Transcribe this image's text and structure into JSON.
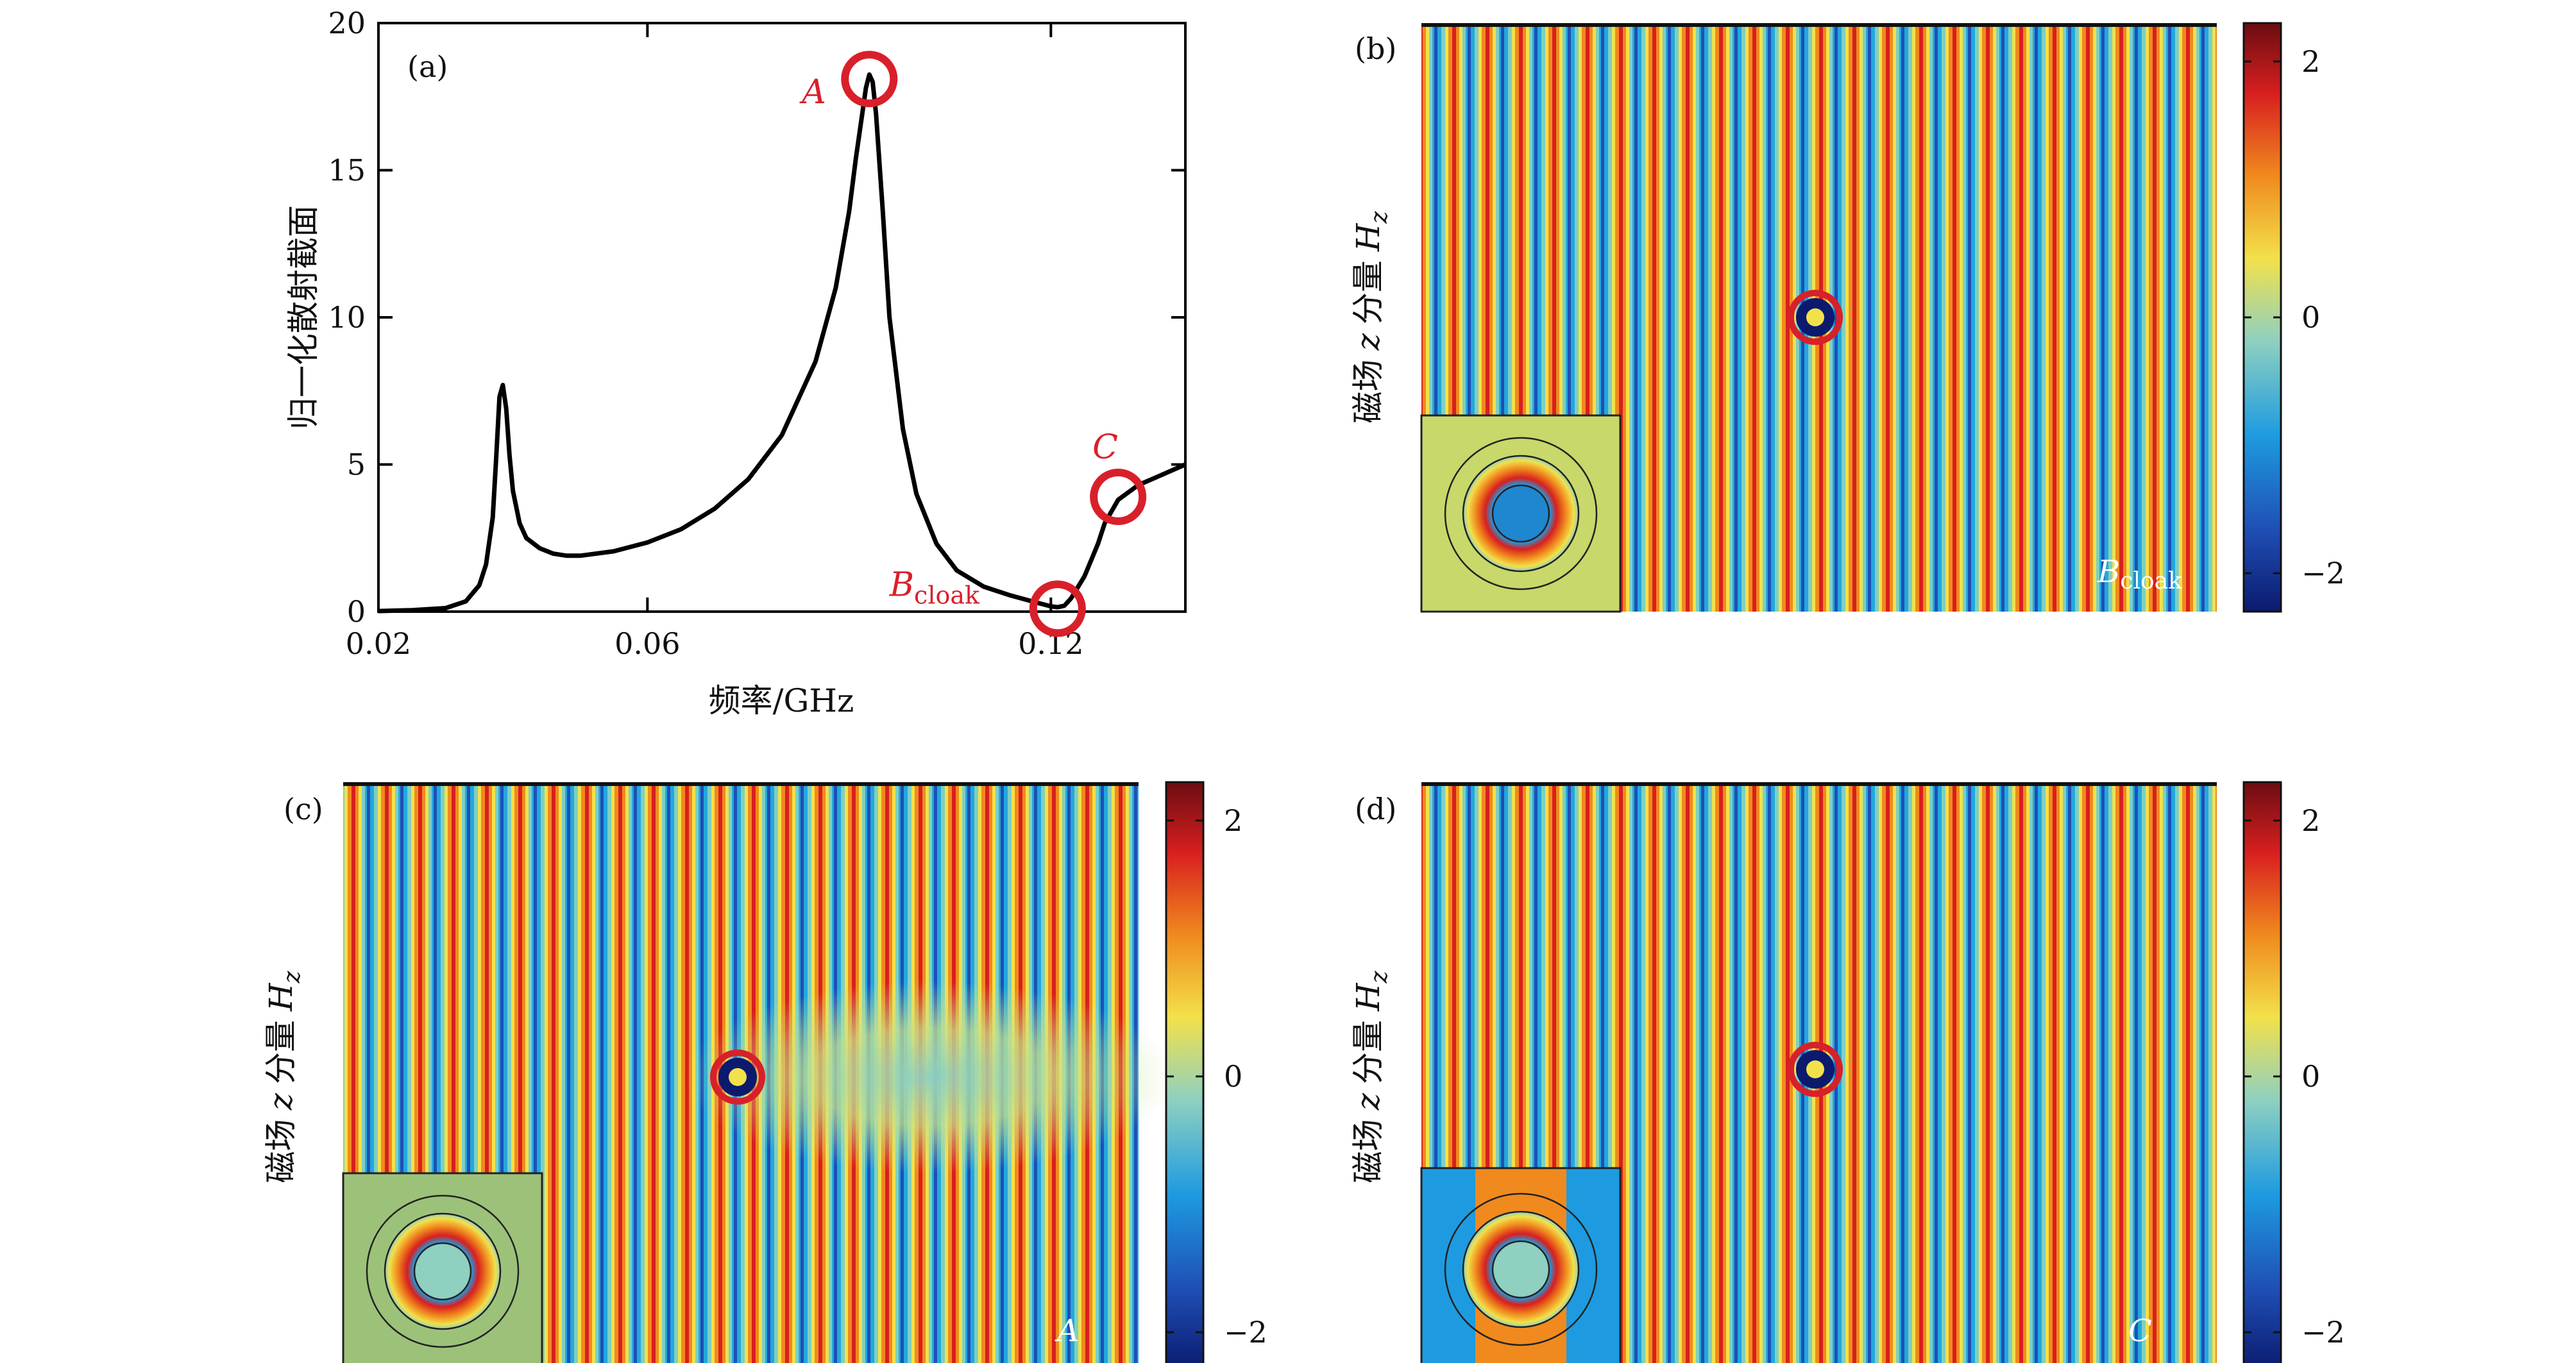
{
  "colors": {
    "curve": "#000000",
    "marker": "#d8202a",
    "marker_label": "#d8202a"
  },
  "colormap_stops": [
    "#0b1a6e",
    "#1f4fb5",
    "#1e9be0",
    "#8fd0c0",
    "#f2e14a",
    "#f08a1e",
    "#d81f1f",
    "#6b0d12"
  ],
  "chart_data": [
    {
      "type": "line",
      "panel_label": "(a)",
      "xlabel": "频率/GHz",
      "ylabel": "归一化散射截面",
      "xlim": [
        0.02,
        0.14
      ],
      "ylim": [
        0,
        20
      ],
      "xticks": [
        0.02,
        0.06,
        0.12
      ],
      "xtick_labels": [
        "0.02",
        "0.06",
        "0.12"
      ],
      "yticks": [
        0,
        5,
        10,
        15,
        20
      ],
      "ytick_labels": [
        "0",
        "5",
        "10",
        "15",
        "20"
      ],
      "series": [
        {
          "x": [
            0.02,
            0.025,
            0.03,
            0.033,
            0.035,
            0.036,
            0.037,
            0.0375,
            0.038,
            0.0385,
            0.039,
            0.0395,
            0.04,
            0.041,
            0.042,
            0.044,
            0.046,
            0.048,
            0.05,
            0.055,
            0.06,
            0.065,
            0.07,
            0.075,
            0.08,
            0.085,
            0.088,
            0.09,
            0.091,
            0.092,
            0.0925,
            0.093,
            0.0935,
            0.094,
            0.095,
            0.096,
            0.098,
            0.1,
            0.103,
            0.106,
            0.11,
            0.114,
            0.118,
            0.12,
            0.121,
            0.122,
            0.123,
            0.125,
            0.127,
            0.128,
            0.13,
            0.133,
            0.136,
            0.14
          ],
          "y": [
            0.02,
            0.05,
            0.12,
            0.35,
            0.9,
            1.6,
            3.2,
            5.2,
            7.3,
            7.7,
            6.9,
            5.3,
            4.1,
            3.0,
            2.5,
            2.15,
            1.97,
            1.9,
            1.9,
            2.05,
            2.35,
            2.8,
            3.5,
            4.5,
            6.0,
            8.5,
            11.0,
            13.6,
            15.4,
            17.0,
            17.8,
            18.25,
            18.0,
            16.9,
            13.6,
            10.0,
            6.2,
            4.0,
            2.3,
            1.4,
            0.85,
            0.55,
            0.3,
            0.18,
            0.15,
            0.2,
            0.45,
            1.2,
            2.3,
            3.0,
            3.8,
            4.3,
            4.6,
            5.0
          ]
        }
      ],
      "markers": [
        {
          "name": "A",
          "x": 0.093,
          "y": 18.1
        },
        {
          "name": "B_cloak",
          "x": 0.121,
          "y": 0.1
        },
        {
          "name": "C",
          "x": 0.13,
          "y": 3.9
        }
      ],
      "marker_labels": {
        "A": "A",
        "C": "C",
        "B_main": "B",
        "B_sub": "cloak"
      }
    },
    {
      "type": "heatmap",
      "panel_label": "(b)",
      "ylabel_parts": [
        "磁场",
        "z",
        "分量",
        "H",
        "z"
      ],
      "colorbar_range": [
        -2.3,
        2.3
      ],
      "colorbar_ticks": [
        2,
        0,
        -2
      ],
      "colorbar_tick_labels": [
        "2",
        "0",
        "−2"
      ],
      "corner_label_main": "B",
      "corner_label_sub": "cloak",
      "field_pattern": "unperturbed plane wave"
    },
    {
      "type": "heatmap",
      "panel_label": "(c)",
      "ylabel_parts": [
        "磁场",
        "z",
        "分量",
        "H",
        "z"
      ],
      "colorbar_range": [
        -2.3,
        2.3
      ],
      "colorbar_ticks": [
        2,
        0,
        -2
      ],
      "colorbar_tick_labels": [
        "2",
        "0",
        "−2"
      ],
      "corner_label_main": "A",
      "field_pattern": "strong scattering"
    },
    {
      "type": "heatmap",
      "panel_label": "(d)",
      "ylabel_parts": [
        "磁场",
        "z",
        "分量",
        "H",
        "z"
      ],
      "colorbar_range": [
        -2.3,
        2.3
      ],
      "colorbar_ticks": [
        2,
        0,
        -2
      ],
      "colorbar_tick_labels": [
        "2",
        "0",
        "−2"
      ],
      "corner_label_main": "C",
      "field_pattern": "weak scattering"
    }
  ]
}
